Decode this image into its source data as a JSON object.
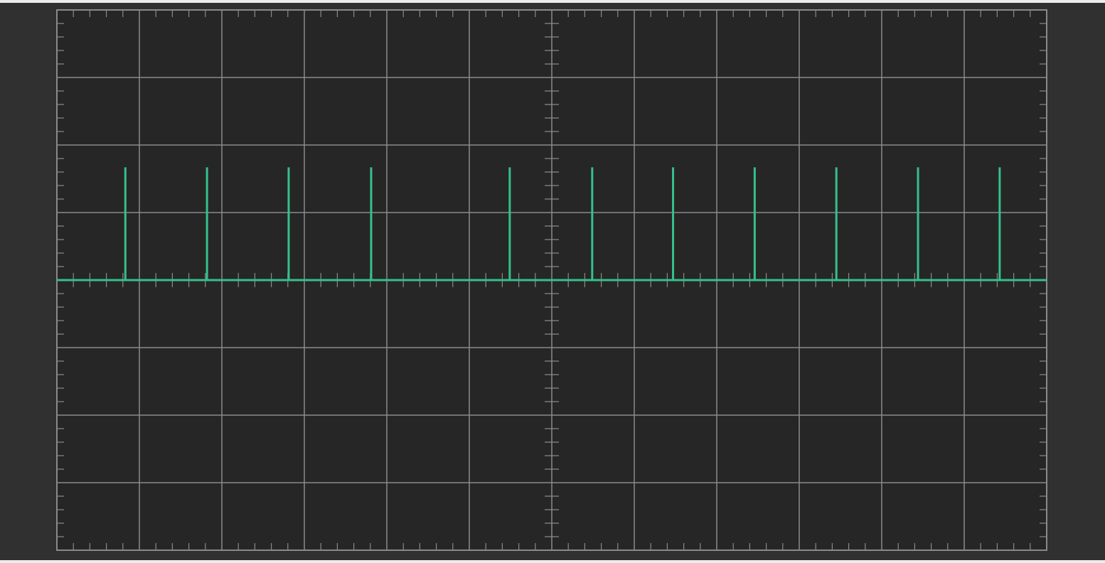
{
  "scope": {
    "grid": {
      "divisions_x": 12,
      "divisions_y": 8,
      "minor_ticks_per_division": 5
    },
    "colors": {
      "background": "#262626",
      "frame": "#303030",
      "grid": "#8a8a8a",
      "trace": "#35c08c"
    },
    "trace": {
      "baseline_div": 0,
      "pulse_amplitude_div": 1.67,
      "pulse_positions_div": [
        0.83,
        1.82,
        2.81,
        3.81,
        5.49,
        6.49,
        7.47,
        8.46,
        9.45,
        10.44,
        11.43
      ]
    }
  }
}
